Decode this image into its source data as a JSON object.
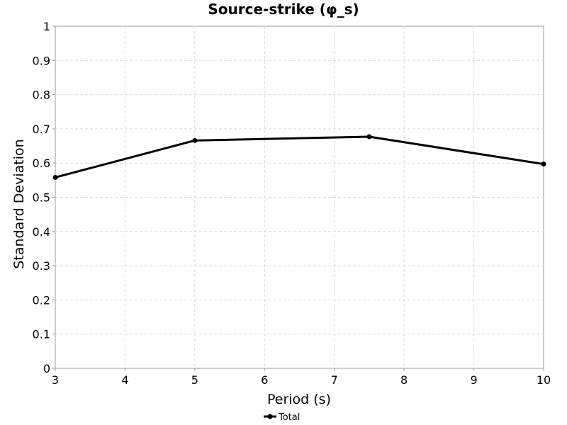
{
  "chart_data": {
    "type": "line",
    "title": "Source-strike (φ_s)",
    "xlabel": "Period (s)",
    "ylabel": "Standard Deviation",
    "xlim": [
      3,
      10
    ],
    "ylim": [
      0,
      1
    ],
    "xticks": [
      "3",
      "4",
      "5",
      "6",
      "7",
      "8",
      "9",
      "10"
    ],
    "yticks": [
      "0",
      "0.1",
      "0.2",
      "0.3",
      "0.4",
      "0.5",
      "0.6",
      "0.7",
      "0.8",
      "0.9",
      "1"
    ],
    "grid": true,
    "legend_position": "bottom-center",
    "series": [
      {
        "name": "Total",
        "color": "#000000",
        "x": [
          3,
          5,
          7.5,
          10
        ],
        "y": [
          0.558,
          0.666,
          0.677,
          0.597
        ]
      }
    ]
  }
}
